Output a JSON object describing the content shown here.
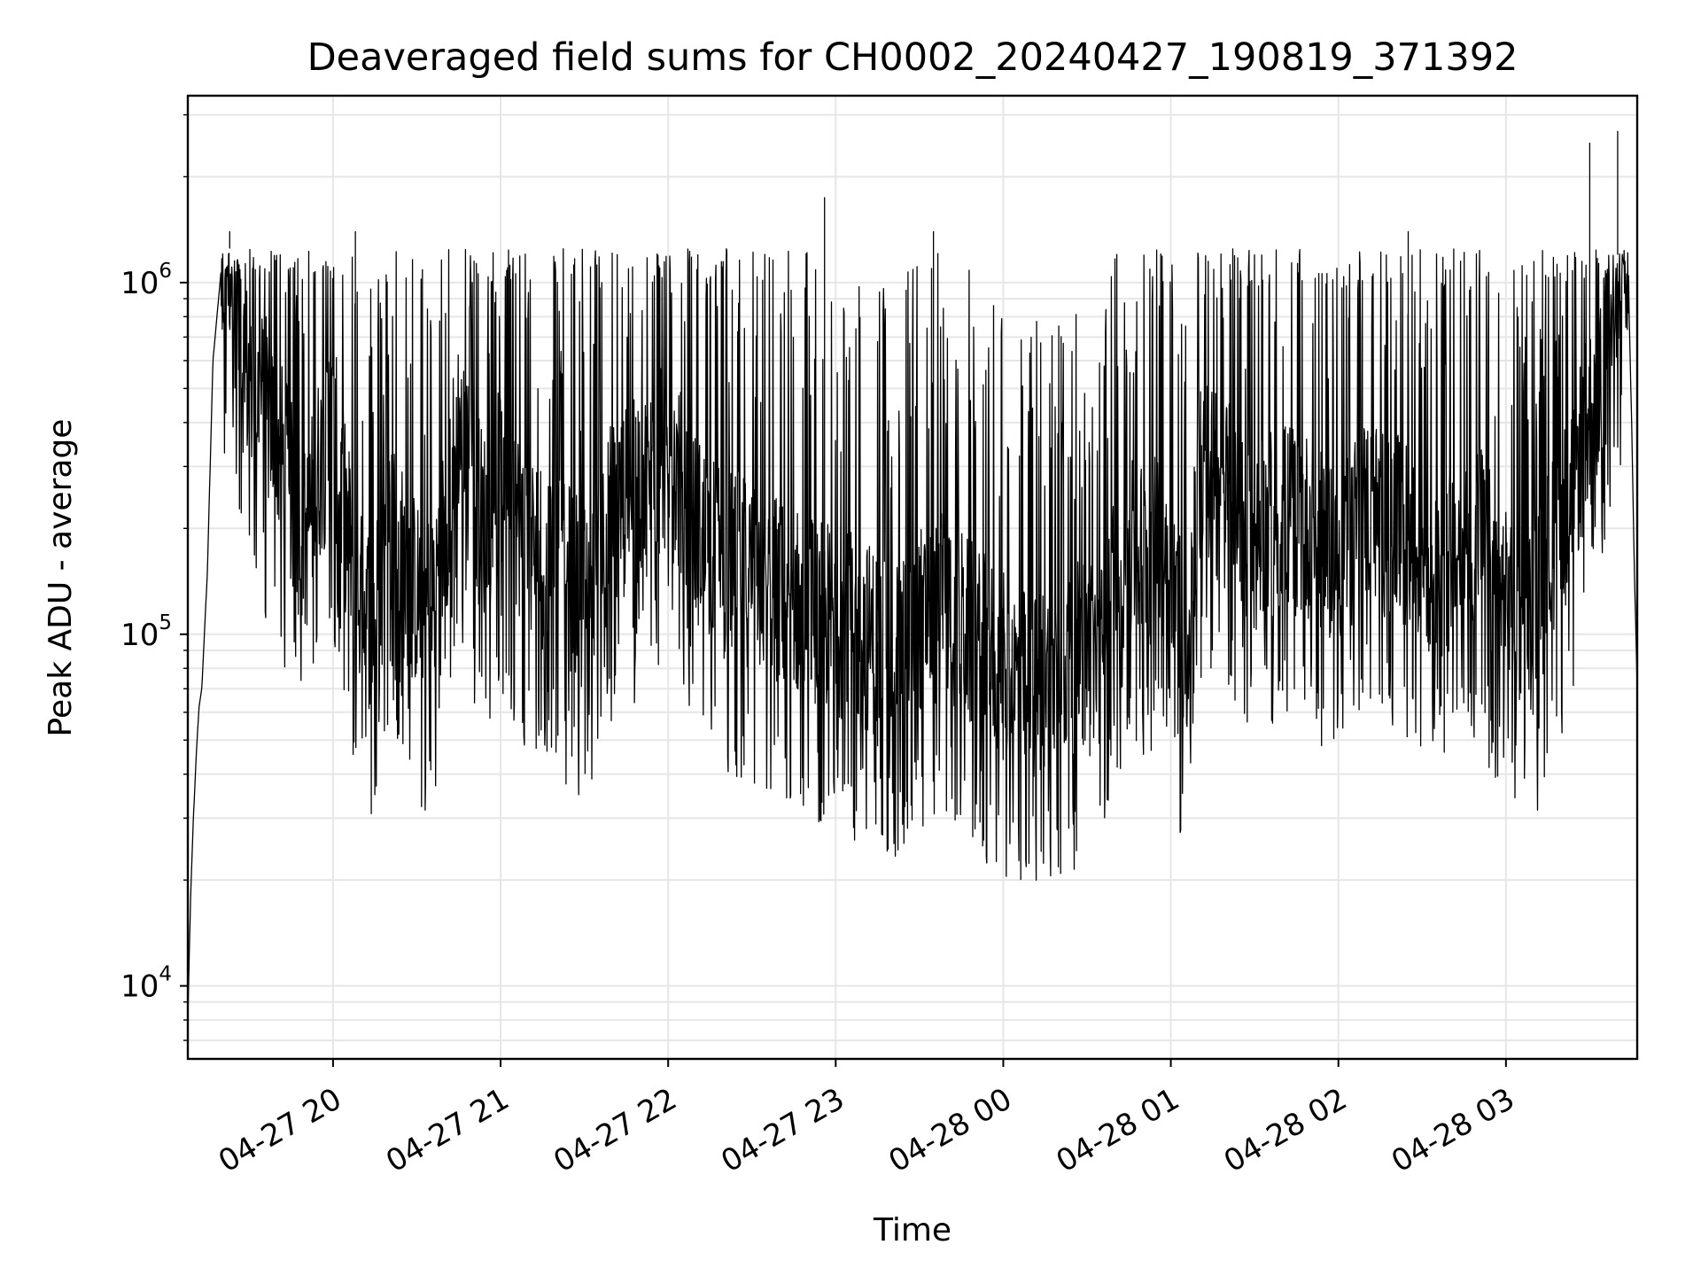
{
  "chart_data": {
    "type": "line",
    "title": "Deaveraged field sums for CH0002_20240427_190819_371392",
    "xlabel": "Time",
    "ylabel": "Peak ADU - average",
    "x_tick_labels": [
      "04-27 20",
      "04-27 21",
      "04-27 22",
      "04-27 23",
      "04-28 00",
      "04-28 01",
      "04-28 02",
      "04-28 03"
    ],
    "x_ticks": [
      "2024-04-27 20:00",
      "2024-04-27 21:00",
      "2024-04-27 22:00",
      "2024-04-27 23:00",
      "2024-04-28 00:00",
      "2024-04-28 01:00",
      "2024-04-28 02:00",
      "2024-04-28 03:00"
    ],
    "xlim": [
      "2024-04-27 19:08",
      "2024-04-28 03:47"
    ],
    "y_scale": "log",
    "y_tick_labels": [
      {
        "base": "10",
        "exp": "4"
      },
      {
        "base": "10",
        "exp": "5"
      },
      {
        "base": "10",
        "exp": "6"
      }
    ],
    "y_ticks": [
      10000,
      100000,
      1000000
    ],
    "ylim": [
      6200,
      3400000
    ],
    "grid": true,
    "line_color": "#000000",
    "grid_color": "#e6e6e6",
    "series": [
      {
        "x": [
          "2024-04-27 19:08",
          "2024-04-27 19:09",
          "2024-04-27 19:10",
          "2024-04-27 19:11",
          "2024-04-27 19:12",
          "2024-04-27 19:13",
          "2024-04-27 19:15",
          "2024-04-27 19:17",
          "2024-04-27 19:20",
          "2024-04-27 19:23",
          "2024-04-27 19:25",
          "2024-04-27 19:27",
          "2024-04-27 19:30",
          "2024-04-27 19:35",
          "2024-04-27 19:40",
          "2024-04-27 19:45",
          "2024-04-27 19:50",
          "2024-04-27 19:55",
          "2024-04-27 20:00",
          "2024-04-27 20:05",
          "2024-04-27 20:10",
          "2024-04-27 20:15",
          "2024-04-27 20:20",
          "2024-04-27 20:25",
          "2024-04-27 20:30",
          "2024-04-27 20:35",
          "2024-04-27 20:40",
          "2024-04-27 20:45",
          "2024-04-27 20:50",
          "2024-04-27 20:55",
          "2024-04-27 21:00",
          "2024-04-27 21:10",
          "2024-04-27 21:20",
          "2024-04-27 21:30",
          "2024-04-27 21:40",
          "2024-04-27 21:50",
          "2024-04-27 22:00",
          "2024-04-27 22:10",
          "2024-04-27 22:20",
          "2024-04-27 22:30",
          "2024-04-27 22:40",
          "2024-04-27 22:50",
          "2024-04-27 23:00",
          "2024-04-27 23:10",
          "2024-04-27 23:20",
          "2024-04-27 23:30",
          "2024-04-27 23:40",
          "2024-04-27 23:50",
          "2024-04-28 00:00",
          "2024-04-28 00:10",
          "2024-04-28 00:20",
          "2024-04-28 00:30",
          "2024-04-28 00:35",
          "2024-04-28 00:40",
          "2024-04-28 00:50",
          "2024-04-28 01:00",
          "2024-04-28 01:05",
          "2024-04-28 01:10",
          "2024-04-28 01:20",
          "2024-04-28 01:30",
          "2024-04-28 01:40",
          "2024-04-28 01:50",
          "2024-04-28 02:00",
          "2024-04-28 02:10",
          "2024-04-28 02:20",
          "2024-04-28 02:30",
          "2024-04-28 02:40",
          "2024-04-28 02:50",
          "2024-04-28 03:00",
          "2024-04-28 03:10",
          "2024-04-28 03:15",
          "2024-04-28 03:20",
          "2024-04-28 03:25",
          "2024-04-28 03:30",
          "2024-04-28 03:35",
          "2024-04-28 03:38",
          "2024-04-28 03:40",
          "2024-04-28 03:42",
          "2024-04-28 03:44",
          "2024-04-28 03:45",
          "2024-04-28 03:46",
          "2024-04-28 03:47"
        ],
        "y": [
          8000,
          18000,
          30000,
          45000,
          62000,
          70000,
          150000,
          600000,
          1100000,
          1250000,
          900000,
          650000,
          520000,
          450000,
          360000,
          250000,
          180000,
          300000,
          380000,
          200000,
          120000,
          110000,
          200000,
          160000,
          130000,
          120000,
          200000,
          400000,
          250000,
          200000,
          280000,
          180000,
          160000,
          130000,
          220000,
          260000,
          330000,
          200000,
          160000,
          150000,
          130000,
          120000,
          110000,
          100000,
          90000,
          110000,
          120000,
          95000,
          80000,
          70000,
          80000,
          90000,
          85000,
          160000,
          170000,
          180000,
          80000,
          300000,
          250000,
          180000,
          220000,
          200000,
          170000,
          230000,
          200000,
          170000,
          160000,
          200000,
          120000,
          110000,
          160000,
          200000,
          300000,
          400000,
          600000,
          800000,
          1200000,
          1150000,
          900000,
          400000,
          150000,
          70000
        ]
      }
    ],
    "spikes_high": [
      {
        "x": "2024-04-27 19:23",
        "y": 1400000
      },
      {
        "x": "2024-04-27 20:08",
        "y": 1400000
      },
      {
        "x": "2024-04-27 22:56",
        "y": 1750000
      },
      {
        "x": "2024-04-27 23:35",
        "y": 1400000
      },
      {
        "x": "2024-04-28 02:25",
        "y": 1400000
      },
      {
        "x": "2024-04-28 03:30",
        "y": 2500000
      },
      {
        "x": "2024-04-28 03:40",
        "y": 2700000
      }
    ],
    "spikes_low": [
      {
        "x": "2024-04-27 20:35",
        "y": 41000
      },
      {
        "x": "2024-04-28 00:31",
        "y": 45000
      },
      {
        "x": "2024-04-27 23:15",
        "y": 48000
      }
    ]
  }
}
